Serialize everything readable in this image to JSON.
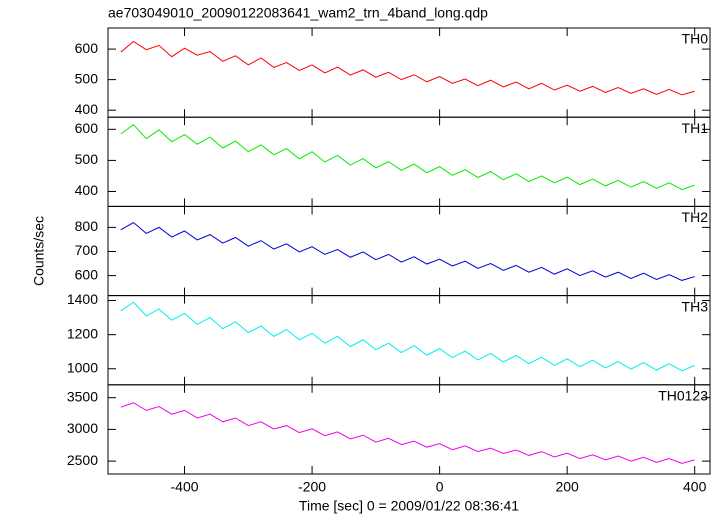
{
  "chart_data": {
    "type": "line",
    "title": "ae703049010_20090122083641_wam2_trn_4band_long.qdp",
    "xlabel": "Time [sec] 0 = 2009/01/22 08:36:41",
    "ylabel": "Counts/sec",
    "xlim": [
      -520,
      424
    ],
    "xticks": [
      -400,
      -200,
      0,
      200,
      400
    ],
    "x": [
      -500,
      -480,
      -460,
      -440,
      -420,
      -400,
      -380,
      -360,
      -340,
      -320,
      -300,
      -280,
      -260,
      -240,
      -220,
      -200,
      -180,
      -160,
      -140,
      -120,
      -100,
      -80,
      -60,
      -40,
      -20,
      0,
      20,
      40,
      60,
      80,
      100,
      120,
      140,
      160,
      180,
      200,
      220,
      240,
      260,
      280,
      300,
      320,
      340,
      360,
      380,
      400
    ],
    "series": [
      {
        "name": "TH0",
        "color": "#ff0000",
        "ylim": [
          377,
          669
        ],
        "yticks": [
          400,
          500,
          600
        ],
        "values": [
          590,
          625,
          598,
          612,
          575,
          603,
          580,
          592,
          560,
          578,
          548,
          571,
          540,
          556,
          530,
          548,
          522,
          541,
          515,
          532,
          508,
          524,
          500,
          516,
          493,
          510,
          488,
          502,
          480,
          498,
          476,
          492,
          470,
          488,
          466,
          482,
          462,
          478,
          458,
          474,
          455,
          470,
          452,
          468,
          450,
          462
        ]
      },
      {
        "name": "TH1",
        "color": "#00ee00",
        "ylim": [
          352,
          639
        ],
        "yticks": [
          400,
          500,
          600
        ],
        "values": [
          585,
          615,
          570,
          598,
          560,
          583,
          552,
          575,
          540,
          562,
          528,
          550,
          518,
          538,
          505,
          528,
          495,
          516,
          485,
          506,
          476,
          496,
          468,
          488,
          460,
          480,
          452,
          470,
          445,
          464,
          438,
          457,
          432,
          450,
          428,
          446,
          422,
          440,
          418,
          436,
          414,
          432,
          410,
          428,
          406,
          420
        ]
      },
      {
        "name": "TH2",
        "color": "#0000dd",
        "ylim": [
          517,
          887
        ],
        "yticks": [
          600,
          700,
          800
        ],
        "values": [
          790,
          820,
          775,
          800,
          760,
          785,
          748,
          770,
          735,
          758,
          722,
          745,
          710,
          732,
          698,
          720,
          688,
          708,
          676,
          698,
          666,
          688,
          656,
          678,
          648,
          668,
          640,
          660,
          630,
          650,
          622,
          642,
          614,
          634,
          606,
          628,
          600,
          620,
          594,
          614,
          588,
          610,
          584,
          604,
          580,
          596
        ]
      },
      {
        "name": "TH3",
        "color": "#00eeee",
        "ylim": [
          906,
          1429
        ],
        "yticks": [
          1000,
          1200,
          1400
        ],
        "values": [
          1340,
          1390,
          1310,
          1350,
          1285,
          1325,
          1260,
          1300,
          1235,
          1275,
          1212,
          1250,
          1190,
          1230,
          1170,
          1208,
          1150,
          1190,
          1130,
          1170,
          1112,
          1150,
          1095,
          1135,
          1080,
          1118,
          1066,
          1104,
          1052,
          1090,
          1040,
          1078,
          1030,
          1068,
          1020,
          1058,
          1012,
          1050,
          1005,
          1042,
          998,
          1036,
          992,
          1030,
          988,
          1020
        ]
      },
      {
        "name": "TH0123",
        "color": "#ee00ee",
        "ylim": [
          2297,
          3703
        ],
        "yticks": [
          2500,
          3000,
          3500
        ],
        "values": [
          3350,
          3420,
          3300,
          3360,
          3240,
          3300,
          3180,
          3240,
          3120,
          3180,
          3060,
          3120,
          3005,
          3060,
          2950,
          3010,
          2900,
          2960,
          2850,
          2910,
          2800,
          2860,
          2760,
          2815,
          2720,
          2775,
          2680,
          2740,
          2650,
          2705,
          2620,
          2675,
          2590,
          2650,
          2565,
          2625,
          2540,
          2600,
          2520,
          2580,
          2500,
          2560,
          2480,
          2540,
          2465,
          2520
        ]
      }
    ]
  }
}
